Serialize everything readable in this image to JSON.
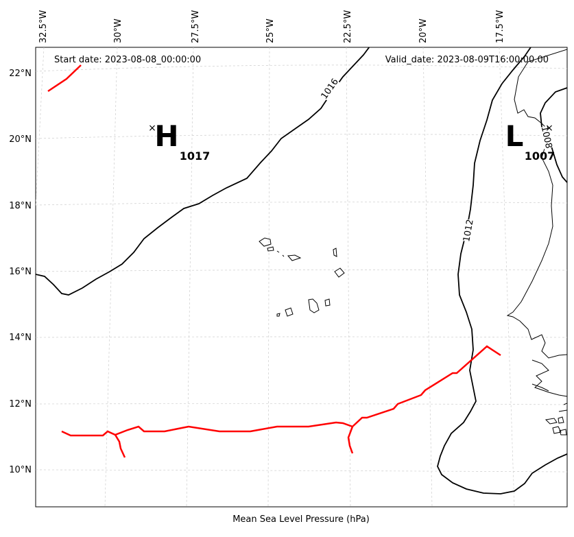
{
  "header": {
    "start_date": "Start date: 2023-08-08_00:00:00",
    "valid_date": "Valid_date: 2023-08-09T16:00:00.00"
  },
  "xlabel": "Mean Sea Level Pressure (hPa)",
  "lon_labels": [
    "32.5°W",
    "30°W",
    "27.5°W",
    "25°W",
    "22.5°W",
    "20°W",
    "17.5°W"
  ],
  "lat_labels": [
    "22°N",
    "20°N",
    "18°N",
    "16°N",
    "14°N",
    "12°N",
    "10°N"
  ],
  "contour_labels": [
    "1016",
    "1012",
    "1008"
  ],
  "pressure_centers": [
    {
      "type": "H",
      "value": "1017"
    },
    {
      "type": "L",
      "value": "1007"
    }
  ],
  "colors": {
    "isobar": "#000000",
    "trough": "#ff0000",
    "grid": "#cccccc",
    "coast": "#000000"
  }
}
